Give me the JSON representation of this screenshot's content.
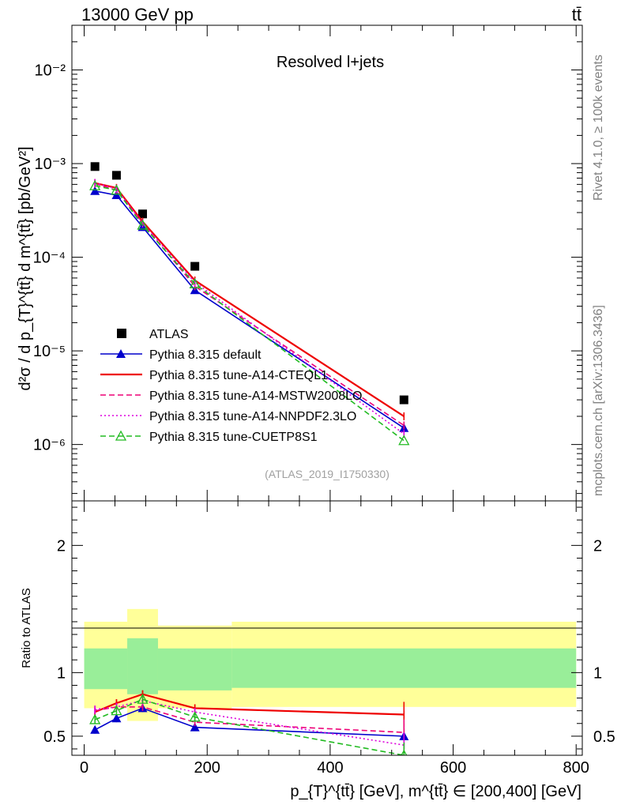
{
  "header": {
    "energy_label": "13000 GeV pp",
    "process_label": "tt̄"
  },
  "side_labels": {
    "rivet": "Rivet 4.1.0, ≥ 100k events",
    "mcplots": "mcplots.cern.ch [arXiv:1306.3436]"
  },
  "chart_data": [
    {
      "type": "scatter",
      "panel": "main",
      "title": "Resolved l+jets",
      "analysis_tag": "(ATLAS_2019_I1750330)",
      "ylabel": "d²σ / d p_{T}^{tt̄} d m^{tt̄} [pb/GeV²]",
      "yscale": "log",
      "ylim": [
        2.5e-07,
        0.03
      ],
      "xlim": [
        -20,
        810
      ],
      "y_tick_labels": [
        "10⁻⁶",
        "10⁻⁵",
        "10⁻⁴",
        "10⁻³",
        "10⁻²"
      ],
      "legend_position": "bottom-left",
      "series": [
        {
          "name": "ATLAS",
          "color": "#000000",
          "style": "data",
          "x": [
            17.5,
            52.5,
            95,
            180,
            520
          ],
          "values": [
            0.00093,
            0.00075,
            0.00029,
            8e-05,
            3e-06
          ]
        },
        {
          "name": "Pythia 8.315 default",
          "color": "#0000cc",
          "style": "solid-triangle",
          "x": [
            17.5,
            52.5,
            95,
            180,
            520
          ],
          "values": [
            0.00051,
            0.00046,
            0.00021,
            4.45e-05,
            1.5e-06
          ]
        },
        {
          "name": "Pythia 8.315 tune-A14-CTEQL1",
          "color": "#ee0000",
          "style": "solid",
          "x": [
            17.5,
            52.5,
            95,
            180,
            520
          ],
          "values": [
            0.00062,
            0.00055,
            0.00024,
            5.65e-05,
            2e-06
          ]
        },
        {
          "name": "Pythia 8.315 tune-A14-MSTW2008LO",
          "color": "#ee0077",
          "style": "dashed",
          "x": [
            17.5,
            52.5,
            95,
            180,
            520
          ],
          "values": [
            0.00061,
            0.00052,
            0.00023,
            4.9e-05,
            1.6e-06
          ]
        },
        {
          "name": "Pythia 8.315 tune-A14-NNPDF2.3LO",
          "color": "#dd00dd",
          "style": "dotted",
          "x": [
            17.5,
            52.5,
            95,
            180,
            520
          ],
          "values": [
            0.00062,
            0.00054,
            0.00023,
            5.4e-05,
            1.3e-06
          ]
        },
        {
          "name": "Pythia 8.315 tune-CUETP8S1",
          "color": "#22bb22",
          "style": "dashed-open-triangle",
          "x": [
            17.5,
            52.5,
            95,
            180,
            520
          ],
          "values": [
            0.00058,
            0.00052,
            0.00022,
            5.2e-05,
            1.1e-06
          ]
        }
      ]
    },
    {
      "type": "line",
      "panel": "ratio",
      "ylabel": "Ratio to ATLAS",
      "xlabel": "p_{T}^{tt̄} [GeV], m^{tt̄} ∈ [200,400] [GeV]",
      "xlim": [
        -20,
        810
      ],
      "ylim": [
        0.35,
        2.35
      ],
      "x_tick_labels": [
        "0",
        "200",
        "400",
        "600",
        "800"
      ],
      "y_tick_labels": [
        "0.5",
        "1",
        "2"
      ],
      "bands": [
        {
          "x_lo": 0,
          "x_hi": 70,
          "inner": [
            0.87,
            1.19
          ],
          "outer": [
            0.72,
            1.4
          ]
        },
        {
          "x_lo": 70,
          "x_hi": 120,
          "inner": [
            0.83,
            1.27
          ],
          "outer": [
            0.62,
            1.5
          ]
        },
        {
          "x_lo": 120,
          "x_hi": 240,
          "inner": [
            0.86,
            1.19
          ],
          "outer": [
            0.72,
            1.37
          ]
        },
        {
          "x_lo": 240,
          "x_hi": 800,
          "inner": [
            0.88,
            1.19
          ],
          "outer": [
            0.73,
            1.4
          ]
        }
      ],
      "series": [
        {
          "name": "Pythia 8.315 default",
          "color": "#0000cc",
          "x": [
            17.5,
            52.5,
            95,
            180,
            520
          ],
          "values": [
            0.55,
            0.64,
            0.72,
            0.57,
            0.5
          ]
        },
        {
          "name": "Pythia 8.315 tune-A14-CTEQL1",
          "color": "#ee0000",
          "x": [
            17.5,
            52.5,
            95,
            180,
            520
          ],
          "values": [
            0.69,
            0.76,
            0.83,
            0.72,
            0.67
          ]
        },
        {
          "name": "Pythia 8.315 tune-A14-MSTW2008LO",
          "color": "#ee0077",
          "x": [
            17.5,
            52.5,
            95,
            180,
            520
          ],
          "values": [
            0.7,
            0.73,
            0.73,
            0.61,
            0.53
          ]
        },
        {
          "name": "Pythia 8.315 tune-A14-NNPDF2.3LO",
          "color": "#dd00dd",
          "x": [
            17.5,
            52.5,
            95,
            180,
            520
          ],
          "values": [
            0.71,
            0.73,
            0.78,
            0.69,
            0.43
          ]
        },
        {
          "name": "Pythia 8.315 tune-CUETP8S1",
          "color": "#22bb22",
          "x": [
            17.5,
            52.5,
            95,
            180,
            520
          ],
          "values": [
            0.63,
            0.7,
            0.79,
            0.65,
            0.35
          ]
        }
      ]
    }
  ]
}
